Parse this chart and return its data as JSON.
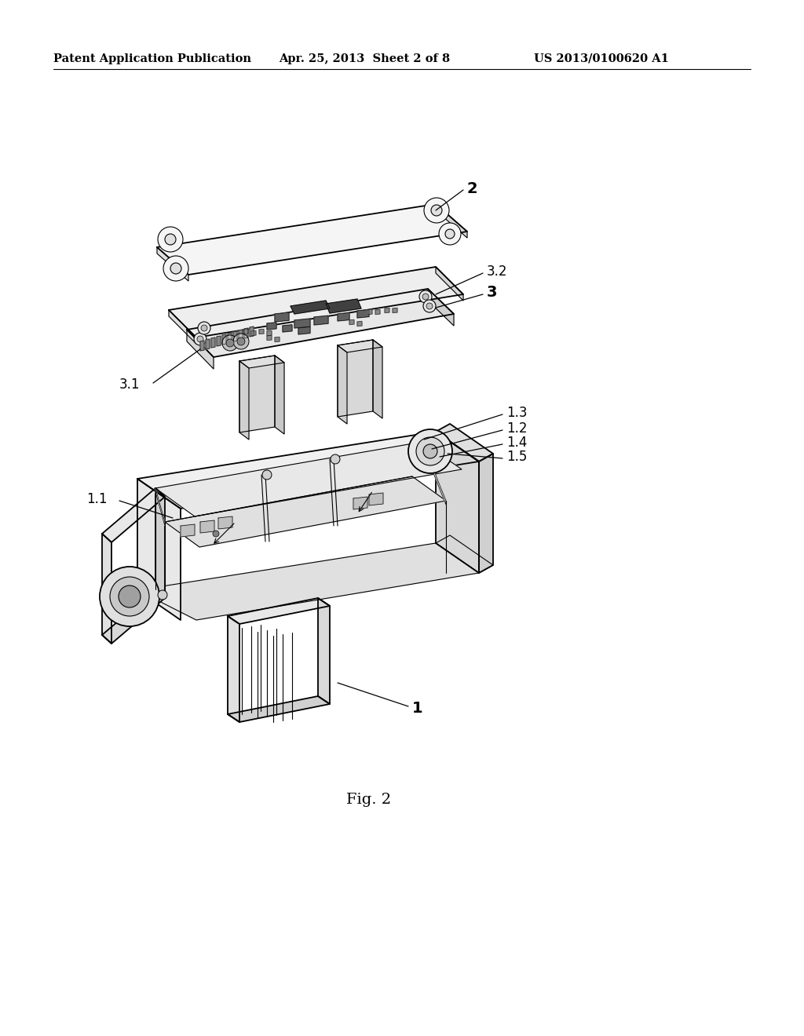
{
  "background_color": "#ffffff",
  "header_left": "Patent Application Publication",
  "header_center": "Apr. 25, 2013  Sheet 2 of 8",
  "header_right": "US 2013/0100620 A1",
  "figure_label": "Fig. 2",
  "line_color": "#000000",
  "fill_light": "#f0f0f0",
  "fill_mid": "#e0e0e0",
  "fill_dark": "#c8c8c8",
  "fill_white": "#ffffff"
}
